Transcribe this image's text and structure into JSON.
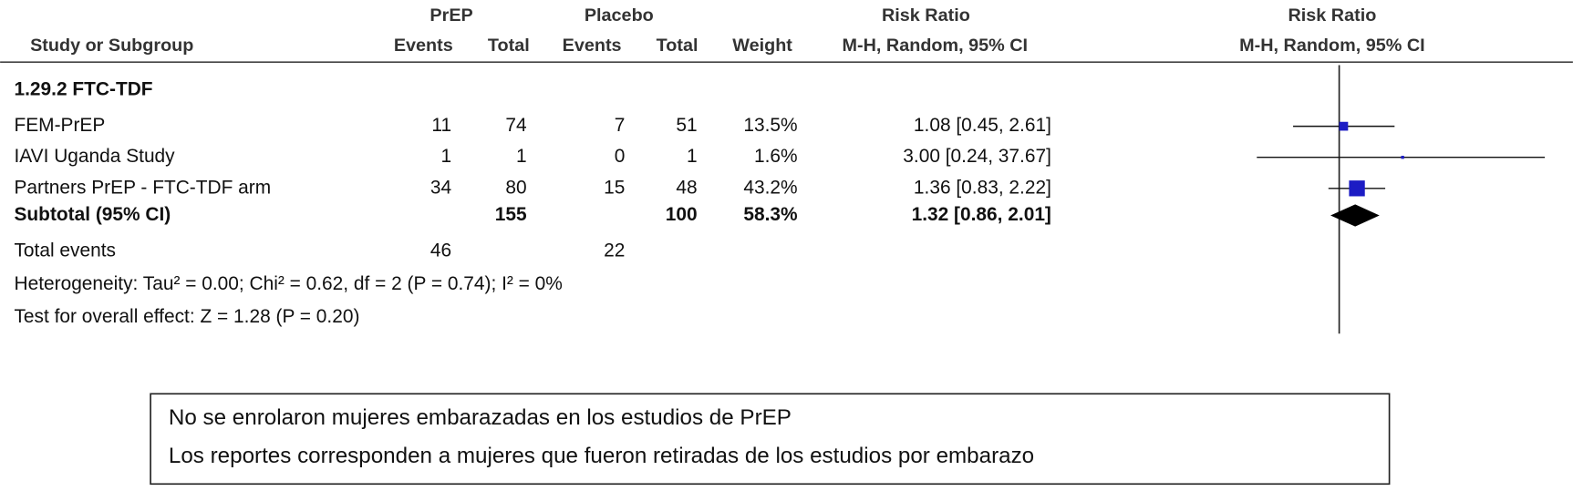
{
  "header": {
    "group1": "PrEP",
    "group2": "Placebo",
    "effect_title": "Risk Ratio",
    "plot_title": "Risk Ratio",
    "study_col": "Study or Subgroup",
    "events1": "Events",
    "total1": "Total",
    "events2": "Events",
    "total2": "Total",
    "weight": "Weight",
    "effect_method": "M-H, Random, 95% CI",
    "plot_method": "M-H, Random, 95% CI"
  },
  "subgroup": "1.29.2 FTC-TDF",
  "studies": [
    {
      "name": "FEM-PrEP",
      "events1": 11,
      "total1": 74,
      "events2": 7,
      "total2": 51,
      "weight": {
        "value": 13.5,
        "label": "13.5%"
      },
      "rr": 1.08,
      "lo": 0.45,
      "hi": 2.61,
      "ci_label": "1.08 [0.45, 2.61]"
    },
    {
      "name": "IAVI Uganda Study",
      "events1": 1,
      "total1": 1,
      "events2": 0,
      "total2": 1,
      "weight": {
        "value": 1.6,
        "label": "1.6%"
      },
      "rr": 3.0,
      "lo": 0.24,
      "hi": 37.67,
      "ci_label": "3.00 [0.24, 37.67]"
    },
    {
      "name": "Partners PrEP - FTC-TDF arm",
      "events1": 34,
      "total1": 80,
      "events2": 15,
      "total2": 48,
      "weight": {
        "value": 43.2,
        "label": "43.2%"
      },
      "rr": 1.36,
      "lo": 0.83,
      "hi": 2.22,
      "ci_label": "1.36 [0.83, 2.22]"
    }
  ],
  "subtotal": {
    "name": "Subtotal (95% CI)",
    "total1": 155,
    "total2": 100,
    "weight": {
      "value": 58.3,
      "label": "58.3%"
    },
    "rr": 1.32,
    "lo": 0.86,
    "hi": 2.01,
    "ci_label": "1.32 [0.86, 2.01]"
  },
  "total_events": {
    "label": "Total events",
    "events1": 46,
    "events2": 22
  },
  "heterogeneity": "Heterogeneity: Tau² = 0.00; Chi² = 0.62, df = 2 (P = 0.74); I² = 0%",
  "overall_effect": "Test for overall effect: Z = 1.28 (P = 0.20)",
  "plot": {
    "log_scale": true,
    "xlim": [
      0.01,
      100
    ],
    "null_value": 1,
    "study_color": "#1c1cc4",
    "summary_color": "#000000"
  },
  "note": [
    "No se enrolaron mujeres embarazadas en los estudios de PrEP",
    "Los reportes corresponden a mujeres que fueron retiradas de los estudios por embarazo"
  ]
}
